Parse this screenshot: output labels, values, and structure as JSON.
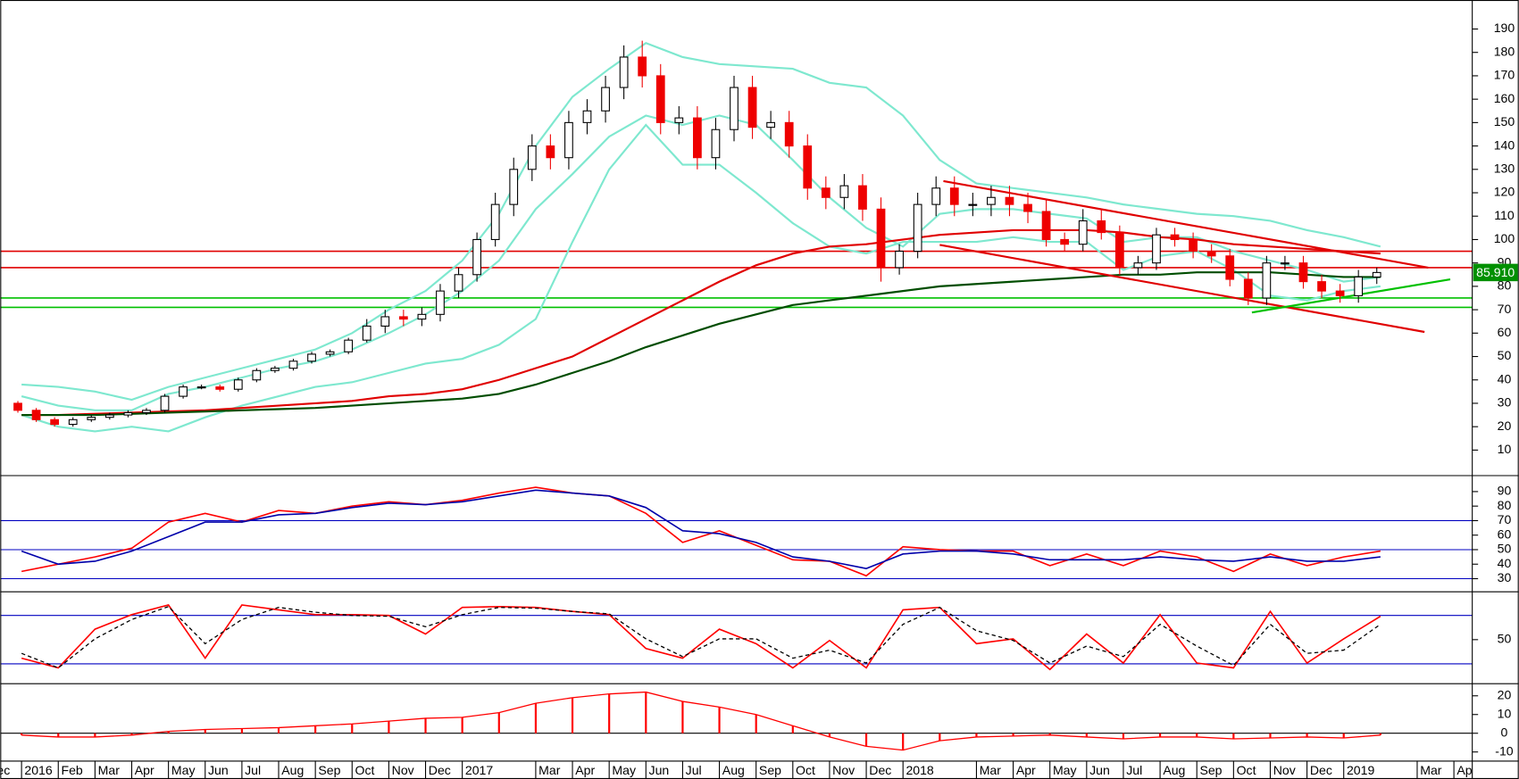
{
  "chart_data": [
    {
      "type": "candlestick",
      "xlim": [
        0.42,
        40.5
      ],
      "ylim": [
        -0.3,
        202.4
      ],
      "yticks": [
        10,
        20,
        30,
        40,
        50,
        60,
        70,
        80,
        90,
        100,
        110,
        120,
        130,
        140,
        150,
        160,
        170,
        180,
        190
      ],
      "up_color": "#ffffff",
      "down_color": "#ee0000",
      "x": [
        0.9,
        1.4,
        1.9,
        2.4,
        2.9,
        3.4,
        3.9,
        4.4,
        4.9,
        5.4,
        5.9,
        6.4,
        6.9,
        7.4,
        7.9,
        8.4,
        8.9,
        9.4,
        9.9,
        10.4,
        10.9,
        11.4,
        11.9,
        12.4,
        12.9,
        13.4,
        13.9,
        14.4,
        14.9,
        15.4,
        15.9,
        16.4,
        16.9,
        17.4,
        17.9,
        18.4,
        18.9,
        19.4,
        19.9,
        20.4,
        20.9,
        21.4,
        21.9,
        22.4,
        22.9,
        23.4,
        23.9,
        24.4,
        24.9,
        25.4,
        25.9,
        26.4,
        26.9,
        27.4,
        27.9,
        28.4,
        28.9,
        29.4,
        29.9,
        30.4,
        30.9,
        31.4,
        31.9,
        32.4,
        32.9,
        33.4,
        33.9,
        34.4,
        34.9,
        35.4,
        35.9,
        36.4,
        36.9,
        37.4,
        37.9
      ],
      "open": [
        30,
        27,
        23,
        21,
        23,
        24,
        25,
        26,
        27,
        33,
        37,
        37,
        36,
        40,
        44,
        45,
        48,
        51,
        52,
        57,
        63,
        67,
        66,
        68,
        78,
        85,
        100,
        115,
        130,
        140,
        135,
        150,
        155,
        165,
        178,
        170,
        150,
        152,
        135,
        147,
        165,
        148,
        150,
        140,
        122,
        118,
        123,
        113,
        88,
        95,
        115,
        122,
        115,
        115,
        118,
        115,
        112,
        100,
        98,
        108,
        103,
        88,
        90,
        102,
        100,
        95,
        93,
        83,
        75,
        90,
        90,
        82,
        78,
        76,
        84
      ],
      "high": [
        31,
        28,
        24,
        24,
        25,
        26,
        27,
        28,
        34,
        38,
        38,
        38,
        41,
        45,
        46,
        49,
        52,
        53,
        58,
        66,
        70,
        70,
        71,
        81,
        88,
        103,
        120,
        135,
        145,
        145,
        155,
        160,
        170,
        183,
        185,
        175,
        157,
        157,
        152,
        170,
        170,
        155,
        155,
        145,
        127,
        128,
        128,
        118,
        98,
        120,
        127,
        127,
        120,
        123,
        123,
        120,
        117,
        103,
        113,
        113,
        106,
        93,
        105,
        105,
        103,
        98,
        96,
        86,
        93,
        93,
        93,
        85,
        81,
        87,
        88
      ],
      "low": [
        26,
        22,
        20,
        20,
        22,
        23,
        24,
        25,
        26,
        32,
        36,
        35,
        35,
        39,
        43,
        44,
        47,
        50,
        51,
        56,
        60,
        63,
        63,
        65,
        75,
        82,
        97,
        110,
        125,
        130,
        130,
        145,
        150,
        160,
        165,
        145,
        145,
        130,
        130,
        142,
        143,
        143,
        135,
        117,
        113,
        113,
        108,
        82,
        85,
        92,
        110,
        110,
        110,
        110,
        110,
        107,
        97,
        95,
        95,
        100,
        85,
        85,
        87,
        97,
        92,
        90,
        80,
        72,
        72,
        87,
        79,
        75,
        73,
        73,
        81
      ],
      "close": [
        27,
        23,
        21,
        23,
        24,
        25,
        26,
        27,
        33,
        37,
        37,
        36,
        40,
        44,
        45,
        48,
        51,
        52,
        57,
        63,
        67,
        66,
        68,
        78,
        85,
        100,
        115,
        130,
        140,
        135,
        150,
        155,
        165,
        178,
        170,
        150,
        152,
        135,
        147,
        165,
        148,
        150,
        140,
        122,
        118,
        123,
        113,
        88,
        95,
        115,
        122,
        115,
        115,
        118,
        115,
        112,
        100,
        98,
        108,
        103,
        88,
        90,
        102,
        100,
        95,
        93,
        83,
        75,
        90,
        90,
        82,
        78,
        76,
        84,
        85.91
      ],
      "line_x": [
        1,
        2,
        3,
        4,
        5,
        6,
        7,
        8,
        9,
        10,
        11,
        12,
        13,
        14,
        15,
        16,
        17,
        18,
        19,
        20,
        21,
        22,
        23,
        24,
        25,
        26,
        27,
        28,
        29,
        30,
        31,
        32,
        33,
        34,
        35,
        36,
        37,
        38
      ],
      "overlays": [
        {
          "color": "#7ee8cf",
          "values": [
            38,
            37,
            35,
            31.5,
            37,
            41,
            45,
            49,
            53,
            60,
            70,
            78,
            91,
            111,
            140,
            161,
            173,
            184,
            178,
            175,
            174,
            173,
            167,
            165,
            153,
            134,
            124,
            122,
            120,
            118,
            115,
            113,
            111,
            110,
            108,
            104,
            101,
            97
          ]
        },
        {
          "color": "#7ee8cf",
          "values": [
            33,
            29,
            27,
            27,
            34,
            37,
            41,
            45,
            48,
            53,
            60,
            68,
            78,
            91,
            113,
            128,
            144,
            153,
            149,
            153,
            149,
            134,
            118,
            105,
            97,
            111,
            113,
            113,
            111,
            109,
            99,
            101,
            101,
            95,
            91,
            87,
            82,
            84
          ]
        },
        {
          "color": "#7ee8cf",
          "values": [
            25,
            20,
            18,
            20,
            18,
            24,
            29,
            33,
            37,
            39,
            43,
            47,
            49,
            55,
            66,
            99,
            130,
            149,
            132,
            132,
            120,
            107,
            97,
            94,
            99,
            99,
            99,
            101,
            99,
            99,
            87,
            93,
            95,
            87,
            76,
            74,
            78,
            80
          ]
        },
        {
          "color": "#e00000",
          "values": [
            25,
            25,
            25.5,
            26,
            26.5,
            27,
            28,
            29,
            30,
            31,
            33,
            34,
            36,
            40,
            45,
            50,
            58,
            66,
            74,
            82,
            89,
            94,
            97,
            98,
            100,
            102,
            103,
            104,
            104,
            104,
            103,
            101,
            100,
            98,
            97,
            96,
            95,
            94
          ]
        },
        {
          "color": "#004d00",
          "values": [
            25,
            25,
            25,
            25.5,
            26,
            26.5,
            27,
            27.5,
            28,
            29,
            30,
            31,
            32,
            34,
            38,
            43,
            48,
            54,
            59,
            64,
            68,
            72,
            74,
            76,
            78,
            80,
            81,
            82,
            83,
            84,
            85,
            85,
            86,
            86,
            86,
            85,
            84,
            84
          ]
        }
      ],
      "hlines": [
        {
          "value": 95,
          "color": "#e00000"
        },
        {
          "value": 88,
          "color": "#e00000"
        },
        {
          "value": 75,
          "color": "#00c000"
        },
        {
          "value": 71,
          "color": "#00c000"
        }
      ],
      "trendlines": [
        {
          "color": "#e00000",
          "x": [
            26.1,
            39.3
          ],
          "values": [
            125,
            88
          ]
        },
        {
          "color": "#e00000",
          "x": [
            26,
            39.2
          ],
          "values": [
            97.7,
            60.5
          ]
        },
        {
          "color": "#00c000",
          "x": [
            34.5,
            39.9
          ],
          "values": [
            68.8,
            83
          ]
        }
      ],
      "last_price": 85.91,
      "last_price_label": "85.910"
    },
    {
      "type": "line",
      "xlim": [
        0.42,
        40.5
      ],
      "ylim": [
        22,
        100
      ],
      "yticks": [
        30,
        40,
        50,
        60,
        70,
        80,
        90
      ],
      "levels": [
        30,
        50,
        70
      ],
      "level_color": "#0000c0",
      "x": [
        1,
        2,
        3,
        4,
        5,
        6,
        7,
        8,
        9,
        10,
        11,
        12,
        13,
        14,
        15,
        16,
        17,
        18,
        19,
        20,
        21,
        22,
        23,
        24,
        25,
        26,
        27,
        28,
        29,
        30,
        31,
        32,
        33,
        34,
        35,
        36,
        37,
        38
      ],
      "series": [
        {
          "color": "#ff0000",
          "values": [
            35,
            40,
            45,
            51,
            69,
            75,
            69,
            77,
            75,
            80,
            83,
            81,
            84,
            89,
            93,
            89,
            87,
            75,
            55,
            63,
            53,
            43,
            42,
            32,
            52,
            50,
            49,
            49,
            39,
            47,
            39,
            49,
            45,
            35,
            47,
            39,
            45,
            49
          ]
        },
        {
          "color": "#0000aa",
          "values": [
            49,
            40,
            42,
            49,
            59,
            69,
            69,
            74,
            75,
            79,
            82,
            81,
            83,
            87,
            91,
            89,
            87,
            79,
            63,
            61,
            55,
            45,
            42,
            37,
            47,
            49,
            49,
            47,
            43,
            43,
            43,
            45,
            43,
            42,
            45,
            42,
            42,
            45
          ]
        }
      ]
    },
    {
      "type": "line",
      "xlim": [
        0.42,
        40.5
      ],
      "ylim": [
        -2.8,
        107.6
      ],
      "yticks": [
        50
      ],
      "levels": [
        20,
        80
      ],
      "level_color": "#0000c0",
      "x": [
        1,
        2,
        3,
        4,
        5,
        6,
        7,
        8,
        9,
        10,
        11,
        12,
        13,
        14,
        15,
        16,
        17,
        18,
        19,
        20,
        21,
        22,
        23,
        24,
        25,
        26,
        27,
        28,
        29,
        30,
        31,
        32,
        33,
        34,
        35,
        36,
        37,
        38
      ],
      "series": [
        {
          "color": "#ff0000",
          "values": [
            27,
            15,
            63,
            81,
            93,
            27,
            93,
            87,
            81,
            81,
            80,
            57,
            90,
            91,
            90,
            85,
            81,
            39,
            27,
            63,
            45,
            15,
            49,
            15,
            87,
            90,
            45,
            51,
            13,
            57,
            21,
            81,
            21,
            15,
            85,
            21,
            51,
            79
          ]
        },
        {
          "color": "#000000",
          "dash": true,
          "values": [
            33,
            15,
            51,
            75,
            91,
            45,
            75,
            90,
            84,
            80,
            79,
            66,
            81,
            90,
            89,
            85,
            82,
            51,
            29,
            51,
            51,
            27,
            37,
            21,
            69,
            90,
            61,
            49,
            21,
            42,
            29,
            69,
            42,
            18,
            69,
            33,
            37,
            69
          ]
        }
      ]
    },
    {
      "type": "bar",
      "xlim": [
        0.42,
        40.5
      ],
      "ylim": [
        -14.1,
        25.7
      ],
      "yticks": [
        -10,
        0,
        10,
        20
      ],
      "levels": [
        0
      ],
      "level_color": "#000000",
      "color": "#ff0000",
      "x": [
        1,
        2,
        3,
        4,
        5,
        6,
        7,
        8,
        9,
        10,
        11,
        12,
        13,
        14,
        15,
        16,
        17,
        18,
        19,
        20,
        21,
        22,
        23,
        24,
        25,
        26,
        27,
        28,
        29,
        30,
        31,
        32,
        33,
        34,
        35,
        36,
        37,
        38
      ],
      "values": [
        -1,
        -2,
        -2,
        -1,
        1,
        2,
        2.5,
        3,
        4,
        5,
        6.5,
        8,
        8.5,
        11,
        16,
        19,
        21,
        22,
        17,
        14,
        10,
        4,
        -2,
        -7,
        -9,
        -4,
        -2,
        -1.5,
        -1,
        -2,
        -3,
        -2,
        -2,
        -3,
        -2.5,
        -2,
        -2.5,
        -1
      ],
      "xticks": [
        {
          "value": 0,
          "label": "Dec"
        },
        {
          "value": 1,
          "label": "2016"
        },
        {
          "value": 2,
          "label": "Feb"
        },
        {
          "value": 3,
          "label": "Mar"
        },
        {
          "value": 4,
          "label": "Apr"
        },
        {
          "value": 5,
          "label": "May"
        },
        {
          "value": 6,
          "label": "Jun"
        },
        {
          "value": 7,
          "label": "Jul"
        },
        {
          "value": 8,
          "label": "Aug"
        },
        {
          "value": 9,
          "label": "Sep"
        },
        {
          "value": 10,
          "label": "Oct"
        },
        {
          "value": 11,
          "label": "Nov"
        },
        {
          "value": 12,
          "label": "Dec"
        },
        {
          "value": 13,
          "label": "2017"
        },
        {
          "value": 15,
          "label": "Mar"
        },
        {
          "value": 16,
          "label": "Apr"
        },
        {
          "value": 17,
          "label": "May"
        },
        {
          "value": 18,
          "label": "Jun"
        },
        {
          "value": 19,
          "label": "Jul"
        },
        {
          "value": 20,
          "label": "Aug"
        },
        {
          "value": 21,
          "label": "Sep"
        },
        {
          "value": 22,
          "label": "Oct"
        },
        {
          "value": 23,
          "label": "Nov"
        },
        {
          "value": 24,
          "label": "Dec"
        },
        {
          "value": 25,
          "label": "2018"
        },
        {
          "value": 27,
          "label": "Mar"
        },
        {
          "value": 28,
          "label": "Apr"
        },
        {
          "value": 29,
          "label": "May"
        },
        {
          "value": 30,
          "label": "Jun"
        },
        {
          "value": 31,
          "label": "Jul"
        },
        {
          "value": 32,
          "label": "Aug"
        },
        {
          "value": 33,
          "label": "Sep"
        },
        {
          "value": 34,
          "label": "Oct"
        },
        {
          "value": 35,
          "label": "Nov"
        },
        {
          "value": 36,
          "label": "Dec"
        },
        {
          "value": 37,
          "label": "2019"
        },
        {
          "value": 39,
          "label": "Mar"
        },
        {
          "value": 40,
          "label": "Apr"
        }
      ]
    }
  ]
}
